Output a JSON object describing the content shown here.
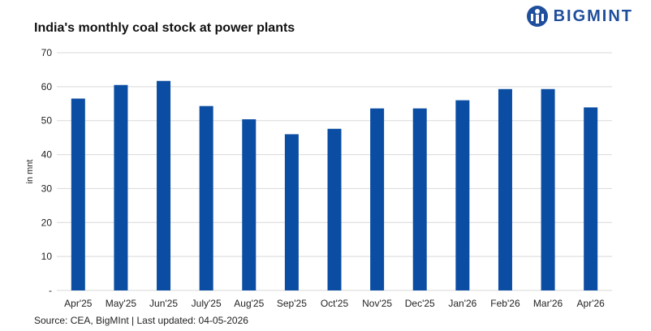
{
  "title": "India's monthly coal stock at power plants",
  "brand": {
    "name": "BIGMINT",
    "accent": "#1f4e9c"
  },
  "source": "Source: CEA, BigMInt | Last updated: 04-05-2026",
  "chart_data": {
    "type": "bar",
    "categories": [
      "Apr'25",
      "May'25",
      "Jun'25",
      "July'25",
      "Aug'25",
      "Sep'25",
      "Oct'25",
      "Nov'25",
      "Dec'25",
      "Jan'26",
      "Feb'26",
      "Mar'26",
      "Apr'26"
    ],
    "values": [
      56.5,
      60.5,
      61.7,
      54.3,
      50.4,
      46.0,
      47.6,
      53.6,
      53.6,
      56.0,
      59.3,
      59.3,
      53.9
    ],
    "ylabel": "in mnt",
    "ylim": [
      0,
      70
    ],
    "yticks": [
      0,
      10,
      20,
      30,
      40,
      50,
      60,
      70
    ],
    "ytick_labels": [
      "-",
      "10",
      "20",
      "30",
      "40",
      "50",
      "60",
      "70"
    ],
    "bar_color": "#0b4da2",
    "grid": true,
    "legend": "none"
  }
}
